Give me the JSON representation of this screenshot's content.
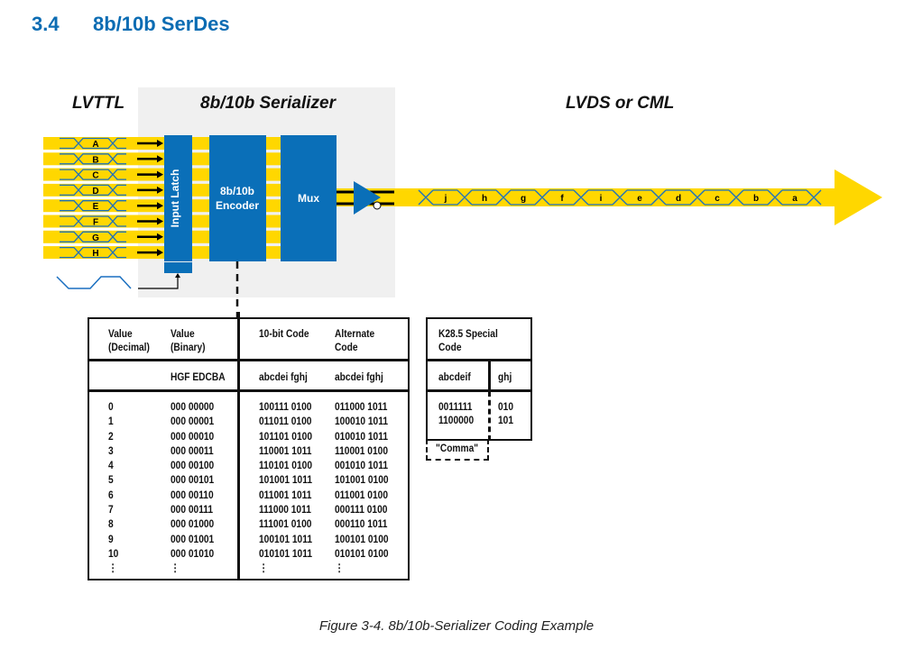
{
  "section": {
    "number": "3.4",
    "title": "8b/10b SerDes"
  },
  "diagram": {
    "left_label": "LVTTL",
    "center_label": "8b/10b Serializer",
    "right_label": "LVDS or CML",
    "inputs": [
      "A",
      "B",
      "C",
      "D",
      "E",
      "F",
      "G",
      "H"
    ],
    "blocks": {
      "latch": "Input Latch",
      "encoder_line1": "8b/10b",
      "encoder_line2": "Encoder",
      "mux": "Mux"
    },
    "serial": [
      "j",
      "h",
      "g",
      "f",
      "i",
      "e",
      "d",
      "c",
      "b",
      "a"
    ],
    "colors": {
      "blue": "#0a6fb8",
      "yellow": "#ffd700",
      "gray": "#f0f0f0"
    }
  },
  "table": {
    "headers": {
      "dec1": "Value",
      "dec2": "(Decimal)",
      "bin1": "Value",
      "bin2": "(Binary)",
      "code": "10-bit Code",
      "alt1": "Alternate",
      "alt2": "Code"
    },
    "subheaders": {
      "bin": "HGF EDCBA",
      "code": "abcdei fghj",
      "alt": "abcdei fghj"
    },
    "rows": [
      [
        "0",
        "000 00000",
        "100111 0100",
        "011000 1011"
      ],
      [
        "1",
        "000 00001",
        "011011 0100",
        "100010 1011"
      ],
      [
        "2",
        "000 00010",
        "101101 0100",
        "010010 1011"
      ],
      [
        "3",
        "000 00011",
        "110001 1011",
        "110001 0100"
      ],
      [
        "4",
        "000 00100",
        "110101 0100",
        "001010 1011"
      ],
      [
        "5",
        "000 00101",
        "101001 1011",
        "101001 0100"
      ],
      [
        "6",
        "000 00110",
        "011001 1011",
        "011001 0100"
      ],
      [
        "7",
        "000 00111",
        "111000 1011",
        "000111 0100"
      ],
      [
        "8",
        "000 01000",
        "111001 0100",
        "000110 1011"
      ],
      [
        "9",
        "000 01001",
        "100101 1011",
        "100101 0100"
      ],
      [
        "10",
        "000 01010",
        "010101 1011",
        "010101 0100"
      ],
      [
        "⋮",
        "⋮",
        "⋮",
        "⋮"
      ]
    ]
  },
  "k285": {
    "title1": "K28.5 Special",
    "title2": "Code",
    "col1": "abcdeif",
    "col2": "ghj",
    "rows": [
      [
        "0011111",
        "010"
      ],
      [
        "1100000",
        "101"
      ]
    ],
    "comma": "\"Comma\""
  },
  "caption": "Figure 3-4. 8b/10b-Serializer Coding Example"
}
